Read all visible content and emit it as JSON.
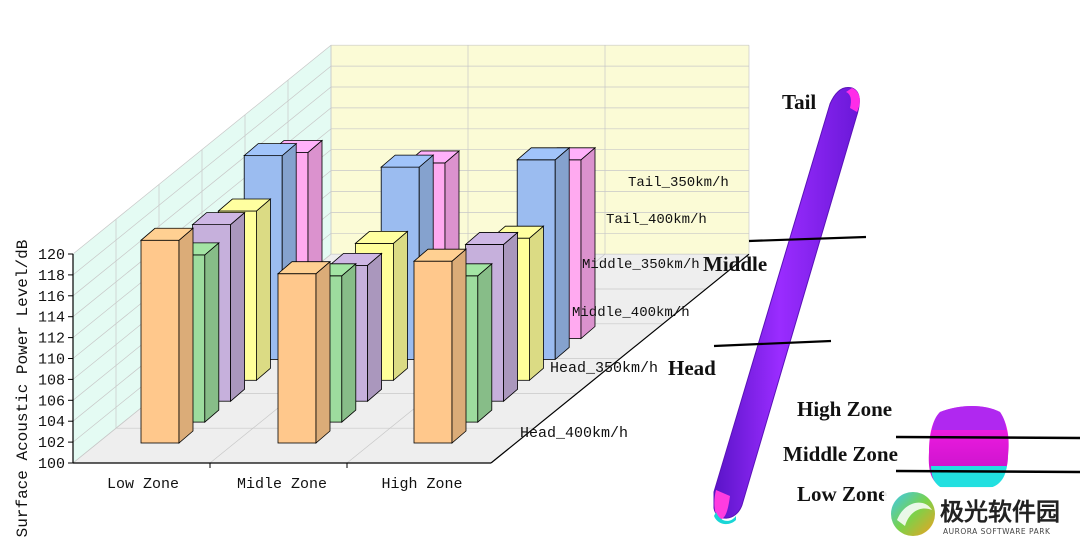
{
  "chart_data": {
    "type": "bar",
    "subtype": "3d-bar",
    "ylabel": "Surface Acoustic Power Level/dB",
    "ylim": [
      100,
      120
    ],
    "yticks": [
      100,
      102,
      104,
      106,
      108,
      110,
      112,
      114,
      116,
      118,
      120
    ],
    "grid": true,
    "categories": [
      "Low Zone",
      "Midle Zone",
      "High Zone"
    ],
    "series": [
      {
        "name": "Head_400km/h",
        "color": "#ffc88c",
        "values": [
          119.4,
          116.2,
          117.4
        ]
      },
      {
        "name": "Head_350km/h",
        "color": "#9ddc9e",
        "values": [
          116.0,
          114.0,
          114.0
        ]
      },
      {
        "name": "Middle_400km/h",
        "color": "#c6b0dc",
        "values": [
          116.9,
          113.0,
          115.0
        ]
      },
      {
        "name": "Middle_350km/h",
        "color": "#ffff9a",
        "values": [
          116.2,
          113.1,
          113.6
        ]
      },
      {
        "name": "Tail_400km/h",
        "color": "#9bbcf0",
        "values": [
          119.5,
          118.4,
          119.1
        ]
      },
      {
        "name": "Tail_350km/h",
        "color": "#ffaaf0",
        "values": [
          117.8,
          116.8,
          117.1
        ]
      }
    ]
  },
  "annotations": {
    "tail": "Tail",
    "middle": "Middle",
    "head": "Head",
    "high_zone": "High Zone",
    "middle_zone": "Middle Zone",
    "low_zone": "Low Zone"
  },
  "colors": {
    "left_wall": "#e4fbf3",
    "back_wall": "#fbfbd6",
    "floor": "#eeeeee",
    "train_body": "#8a1cf0",
    "train_tip": "#ff1ce6",
    "train_base": "#19d6d6"
  },
  "watermark": {
    "title": "极光软件园",
    "subtitle": "AURORA SOFTWARE PARK"
  }
}
